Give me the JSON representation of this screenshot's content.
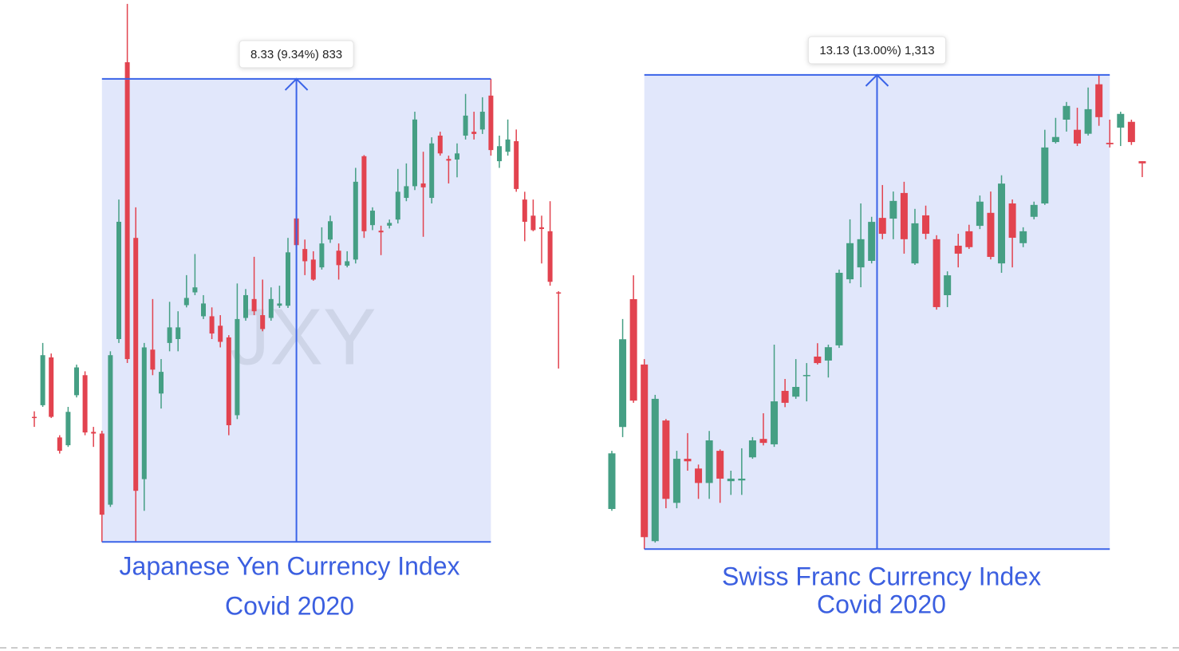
{
  "chart_data": [
    {
      "type": "candlestick",
      "title": "Japanese Yen Currency Index",
      "subtitle": "Covid 2020",
      "watermark": "JXY",
      "ylim": [
        89.18,
        98.94
      ],
      "up_color": "#459f84",
      "down_color": "#e2434f",
      "box_color": "#3a63e8",
      "open": [
        91.44,
        91.65,
        92.51,
        91.07,
        90.93,
        91.83,
        92.19,
        91.17,
        91.14,
        89.86,
        92.84,
        97.82,
        94.66,
        90.32,
        92.65,
        91.86,
        92.77,
        92.84,
        93.45,
        93.68,
        93.25,
        93.25,
        93.08,
        92.87,
        91.47,
        93.22,
        93.56,
        93.27,
        93.22,
        93.44,
        93.44,
        95.01,
        94.46,
        94.27,
        94.13,
        94.63,
        94.43,
        94.16,
        94.27,
        96.13,
        94.89,
        94.79,
        94.88,
        94.99,
        95.38,
        95.59,
        95.64,
        95.38,
        96.5,
        96.08,
        96.07,
        96.5,
        96.57,
        96.61,
        97.22,
        96.04,
        96.21,
        96.4,
        95.35,
        95.06,
        94.85,
        94.78,
        93.68
      ],
      "high": [
        91.54,
        92.77,
        92.58,
        91.11,
        91.62,
        92.38,
        92.26,
        91.26,
        91.19,
        92.62,
        95.35,
        98.87,
        95.21,
        92.77,
        93.56,
        92.48,
        93.51,
        93.34,
        93.99,
        94.37,
        93.63,
        93.41,
        93.27,
        92.91,
        93.84,
        93.74,
        94.32,
        93.91,
        93.77,
        93.8,
        94.66,
        95.57,
        94.63,
        94.42,
        94.85,
        95.06,
        94.56,
        94.42,
        95.92,
        96.15,
        95.21,
        94.88,
        94.99,
        95.9,
        96.0,
        96.93,
        96.21,
        96.47,
        96.57,
        96.14,
        96.36,
        97.25,
        96.93,
        97.19,
        97.52,
        96.5,
        96.79,
        96.61,
        95.49,
        95.35,
        95.06,
        95.32,
        93.7
      ],
      "low": [
        91.26,
        91.62,
        91.42,
        90.78,
        90.9,
        91.79,
        91.11,
        90.9,
        89.19,
        89.82,
        92.77,
        92.41,
        89.19,
        89.75,
        92.19,
        91.59,
        92.62,
        92.62,
        93.41,
        93.63,
        93.2,
        92.84,
        92.69,
        91.11,
        91.4,
        93.17,
        93.27,
        92.98,
        93.17,
        93.4,
        93.4,
        94.49,
        93.99,
        93.89,
        94.09,
        94.57,
        93.91,
        94.13,
        94.2,
        94.66,
        94.8,
        94.35,
        94.83,
        94.92,
        95.32,
        95.52,
        94.68,
        95.28,
        96.14,
        95.64,
        95.75,
        96.43,
        96.43,
        96.53,
        96.14,
        95.92,
        96.14,
        95.49,
        94.6,
        94.78,
        94.2,
        93.8,
        92.31
      ],
      "close": [
        91.42,
        92.55,
        91.44,
        90.83,
        91.53,
        92.33,
        91.16,
        91.14,
        89.68,
        92.55,
        94.95,
        92.48,
        90.11,
        92.69,
        92.29,
        92.25,
        93.05,
        93.05,
        93.58,
        93.77,
        93.48,
        92.94,
        92.79,
        91.29,
        93.2,
        93.63,
        93.34,
        93.02,
        93.56,
        93.48,
        94.4,
        94.53,
        94.24,
        93.91,
        94.56,
        94.96,
        94.17,
        94.24,
        95.67,
        94.78,
        95.15,
        94.76,
        94.93,
        95.49,
        95.59,
        96.79,
        95.57,
        96.36,
        96.18,
        96.05,
        96.18,
        96.86,
        96.53,
        96.93,
        96.24,
        96.31,
        96.43,
        95.54,
        94.95,
        94.8,
        94.82,
        93.87,
        93.66
      ],
      "measure": {
        "start": 8,
        "end": 54,
        "low": 89.19,
        "high": 97.52,
        "label": "8.33 (9.34%) 833"
      }
    },
    {
      "type": "candlestick",
      "title": "Swiss Franc Currency Index",
      "subtitle": "Covid 2020",
      "ylim": [
        100.74,
        115.32
      ],
      "up_color": "#459f84",
      "down_color": "#e2434f",
      "box_color": "#3a63e8",
      "open": [
        102.11,
        104.38,
        107.92,
        106.11,
        101.22,
        104.56,
        102.28,
        103.5,
        103.23,
        102.83,
        103.72,
        102.88,
        102.9,
        103.54,
        104.05,
        103.9,
        105.38,
        105.22,
        105.8,
        106.33,
        106.22,
        106.64,
        108.47,
        108.8,
        108.98,
        110.17,
        110.15,
        110.86,
        108.91,
        110.24,
        109.58,
        108.03,
        109.4,
        109.8,
        109.95,
        110.31,
        108.91,
        110.57,
        109.47,
        110.2,
        110.57,
        112.27,
        112.89,
        112.61,
        112.5,
        113.87,
        112.25,
        112.67,
        112.83,
        111.74
      ],
      "high": [
        103.72,
        107.37,
        108.58,
        106.26,
        105.27,
        104.6,
        103.72,
        104.21,
        103.34,
        104.27,
        103.76,
        103.17,
        103.79,
        104.1,
        104.76,
        106.66,
        105.71,
        106.26,
        106.15,
        106.7,
        106.66,
        108.74,
        110.13,
        110.57,
        110.2,
        111.08,
        110.9,
        111.17,
        110.42,
        110.51,
        109.69,
        108.69,
        109.73,
        109.98,
        110.79,
        110.9,
        111.35,
        110.68,
        109.91,
        110.62,
        112.61,
        112.94,
        113.38,
        113.22,
        113.78,
        114.13,
        112.89,
        113.11,
        112.89,
        111.74
      ],
      "low": [
        102.06,
        104.1,
        105.05,
        101.0,
        101.18,
        102.13,
        102.13,
        103.17,
        102.39,
        102.39,
        102.28,
        102.5,
        102.5,
        103.5,
        103.87,
        103.83,
        104.93,
        105.16,
        105.09,
        106.11,
        105.75,
        106.57,
        108.36,
        108.25,
        108.91,
        109.58,
        109.58,
        109.18,
        108.87,
        109.58,
        107.63,
        107.7,
        108.8,
        109.31,
        109.86,
        109.02,
        108.65,
        108.8,
        109.36,
        110.13,
        110.53,
        112.23,
        112.56,
        112.16,
        112.45,
        112.72,
        112.12,
        112.16,
        112.19,
        111.3
      ],
      "close": [
        103.65,
        106.81,
        105.11,
        101.33,
        105.16,
        102.39,
        103.5,
        103.43,
        102.83,
        104.01,
        102.95,
        102.95,
        102.95,
        104.01,
        103.94,
        105.09,
        105.05,
        105.49,
        105.82,
        106.15,
        106.59,
        108.65,
        109.47,
        109.58,
        110.06,
        109.73,
        110.64,
        109.58,
        110.02,
        109.73,
        107.7,
        108.58,
        109.18,
        109.36,
        110.62,
        109.09,
        111.12,
        109.62,
        109.8,
        110.53,
        112.12,
        112.41,
        113.27,
        112.23,
        113.18,
        112.96,
        112.21,
        113.05,
        112.27,
        111.68
      ],
      "measure": {
        "start": 3,
        "end": 46,
        "low": 101.0,
        "high": 114.13,
        "label": "13.13 (13.00%) 1,313"
      }
    }
  ]
}
